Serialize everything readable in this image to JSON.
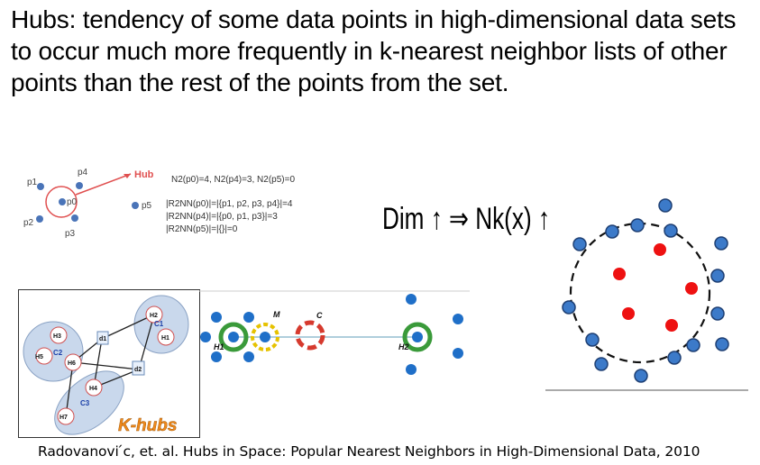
{
  "title": "Hubs:  tendency of some data points in high-dimensional data sets to occur much more frequently in k-nearest neighbor lists of other points than the rest of the points from the set.",
  "fig1": {
    "hub_label": "Hub",
    "points": [
      "p0",
      "p1",
      "p2",
      "p3",
      "p4",
      "p5"
    ],
    "n2_line": "N2(p0)=4,  N2(p4)=3,  N2(p5)=0",
    "r2nn_lines": [
      "|R2NN(p0)|=|{p1, p2, p3, p4}|=4",
      "|R2NN(p4)|=|{p0, p1, p3}|=3",
      "|R2NN(p5)|=|{}|=0"
    ]
  },
  "formula": {
    "text": "Dim ↑ ⇒ Nk(x) ↑"
  },
  "fig4": {
    "labels": [
      "H1",
      "H2",
      "H3",
      "H4",
      "H5",
      "H6",
      "H7",
      "d1",
      "d2",
      "C1",
      "C2",
      "C3"
    ],
    "brand": "K-hubs"
  },
  "fig5": {
    "labels": [
      "M",
      "C",
      "H1",
      "H2"
    ]
  },
  "citation": "Radovanovi ́c, et. al. Hubs in Space: Popular Nearest Neighbors in High-Dimensional Data, 2010",
  "colors": {
    "point_blue": "#2e6fd0",
    "point_blue_dark": "#1e3f73",
    "hub_red": "#ee1111",
    "ring_green": "#3a9a3a",
    "ring_yellow": "#e6c200",
    "ring_red": "#d63a2e",
    "kh_orange": "#f08a1c"
  }
}
